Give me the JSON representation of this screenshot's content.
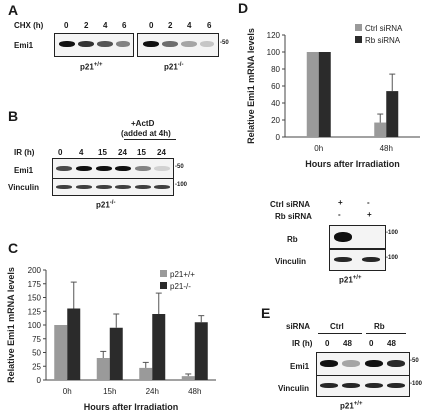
{
  "panels": {
    "A": {
      "letter": "A",
      "cond_label": "CHX (h)",
      "times_left": [
        "0",
        "2",
        "4",
        "6"
      ],
      "times_right": [
        "0",
        "2",
        "4",
        "6"
      ],
      "row_label": "Emi1",
      "size_marker": "-50",
      "caption_left": "p21",
      "caption_left_sup": "+/+",
      "caption_right": "p21",
      "caption_right_sup": "-/-",
      "emi1_left_intensity": [
        1.0,
        0.85,
        0.7,
        0.5
      ],
      "emi1_right_intensity": [
        1.0,
        0.6,
        0.35,
        0.2
      ]
    },
    "B": {
      "letter": "B",
      "cond_label": "IR (h)",
      "times": [
        "0",
        "4",
        "15",
        "24",
        "15",
        "24"
      ],
      "actd_label_1": "+ActD",
      "actd_label_2": "(added at 4h)",
      "rows": [
        "Emi1",
        "Vinculin"
      ],
      "marker_emi1": "-50",
      "marker_vinc": "-100",
      "caption": "p21",
      "caption_sup": "-/-",
      "emi1_intensity": [
        0.75,
        1.0,
        1.0,
        1.0,
        0.5,
        0.15
      ],
      "vinculin_intensity": [
        0.8,
        0.8,
        0.8,
        0.8,
        0.8,
        0.8
      ]
    },
    "C": {
      "letter": "C",
      "chart_title": "",
      "ylabel": "Relative Emi1 mRNA levels",
      "xlabel": "Hours after Irradiation",
      "yticks": [
        "0",
        "25",
        "50",
        "75",
        "100",
        "125",
        "150",
        "175",
        "200"
      ]
    },
    "D": {
      "letter": "D",
      "ylabel": "Relative Emi1 mRNA levels",
      "xlabel": "Hours after Irradiation",
      "yticks": [
        "0",
        "20",
        "40",
        "60",
        "80",
        "100",
        "120"
      ],
      "blot_ctrl_label": "Ctrl siRNA",
      "blot_rb_label": "Rb siRNA",
      "ctrl_marks": [
        "+",
        "-"
      ],
      "rb_marks": [
        "-",
        "+"
      ],
      "rows": [
        "Rb",
        "Vinculin"
      ],
      "marker_rb": "-100",
      "marker_vinc": "-100",
      "caption": "p21",
      "caption_sup": "+/+",
      "rb_intensity": [
        1.0,
        0.0
      ],
      "vinculin_intensity": [
        0.9,
        0.9
      ]
    },
    "E": {
      "letter": "E",
      "sirna_label": "siRNA",
      "group_ctrl": "Ctrl",
      "group_rb": "Rb",
      "ir_label": "IR (h)",
      "times": [
        "0",
        "48",
        "0",
        "48"
      ],
      "rows": [
        "Emi1",
        "Vinculin"
      ],
      "marker_emi1": "-50",
      "marker_vinc": "-100",
      "caption": "p21",
      "caption_sup": "+/+",
      "emi1_intensity": [
        1.0,
        0.35,
        1.0,
        0.9
      ],
      "vinculin_intensity": [
        0.9,
        0.9,
        0.9,
        0.9
      ]
    }
  },
  "chart_data": [
    {
      "type": "bar",
      "panel": "C",
      "categories": [
        "0h",
        "15h",
        "24h",
        "48h"
      ],
      "series": [
        {
          "name": "p21+/+",
          "values": [
            100,
            40,
            22,
            7
          ],
          "errors": [
            0,
            12,
            10,
            4
          ],
          "color": "#9a9a9a"
        },
        {
          "name": "p21-/-",
          "values": [
            130,
            95,
            120,
            105
          ],
          "errors": [
            48,
            25,
            38,
            12
          ],
          "color": "#2b2b2b"
        }
      ],
      "xlabel": "Hours after Irradiation",
      "ylabel": "Relative Emi1 mRNA levels",
      "ylim": [
        0,
        200
      ],
      "legend": "top-right",
      "grid": false
    },
    {
      "type": "bar",
      "panel": "D",
      "categories": [
        "0h",
        "48h"
      ],
      "series": [
        {
          "name": "Ctrl siRNA",
          "values": [
            100,
            17
          ],
          "errors": [
            0,
            10
          ],
          "color": "#9a9a9a"
        },
        {
          "name": "Rb siRNA",
          "values": [
            100,
            54
          ],
          "errors": [
            0,
            20
          ],
          "color": "#2b2b2b"
        }
      ],
      "xlabel": "Hours after Irradiation",
      "ylabel": "Relative Emi1 mRNA levels",
      "ylim": [
        0,
        120
      ],
      "legend": "top-right",
      "grid": false
    }
  ]
}
